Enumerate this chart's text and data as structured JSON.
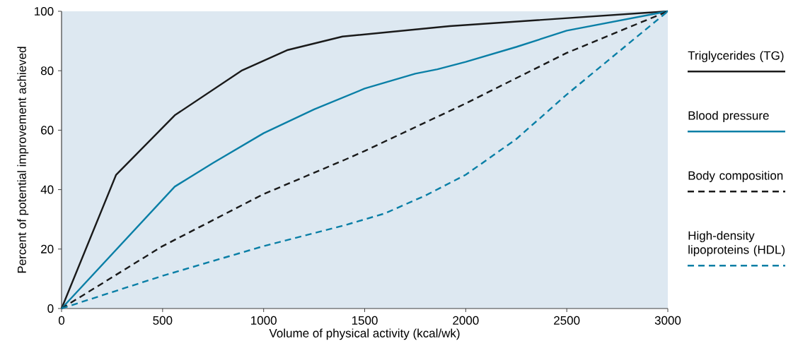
{
  "chart_data": {
    "type": "line",
    "xlabel": "Volume of physical activity (kcal/wk)",
    "ylabel": "Percent of potential improvement achieved",
    "xlim": [
      0,
      3000
    ],
    "ylim": [
      0,
      100
    ],
    "xticks": [
      0,
      500,
      1000,
      1500,
      2000,
      2500,
      3000
    ],
    "yticks": [
      0,
      20,
      40,
      60,
      80,
      100
    ],
    "grid": false,
    "legend": "right",
    "marker": "none",
    "series": [
      {
        "name": "Triglycerides (TG)",
        "color": "#1a1a1a",
        "line_style": "solid",
        "x": [
          0,
          270,
          560,
          890,
          1120,
          1390,
          1920,
          3000
        ],
        "values": [
          0,
          45,
          65,
          80,
          87,
          91.5,
          95,
          100
        ]
      },
      {
        "name": "Blood pressure",
        "color": "#0a7fa6",
        "line_style": "solid",
        "x": [
          0,
          560,
          750,
          1000,
          1250,
          1500,
          1750,
          1860,
          2000,
          2250,
          2500,
          3000
        ],
        "values": [
          0,
          41,
          49,
          59,
          67,
          74,
          79,
          80.5,
          83,
          88,
          93.5,
          100
        ]
      },
      {
        "name": "Body composition",
        "color": "#1a1a1a",
        "line_style": "dashed",
        "x": [
          0,
          500,
          1000,
          1400,
          1500,
          2000,
          2500,
          3000
        ],
        "values": [
          0,
          21,
          38.5,
          50,
          53,
          69,
          86,
          100
        ]
      },
      {
        "name": "High-density lipoproteins (HDL)",
        "color": "#0a7fa6",
        "line_style": "dashed",
        "x": [
          0,
          500,
          1000,
          1400,
          1600,
          1800,
          2000,
          2250,
          2500,
          2750,
          3000
        ],
        "values": [
          0,
          11,
          21,
          28,
          32,
          38,
          45,
          57,
          72,
          86,
          100
        ]
      }
    ]
  }
}
